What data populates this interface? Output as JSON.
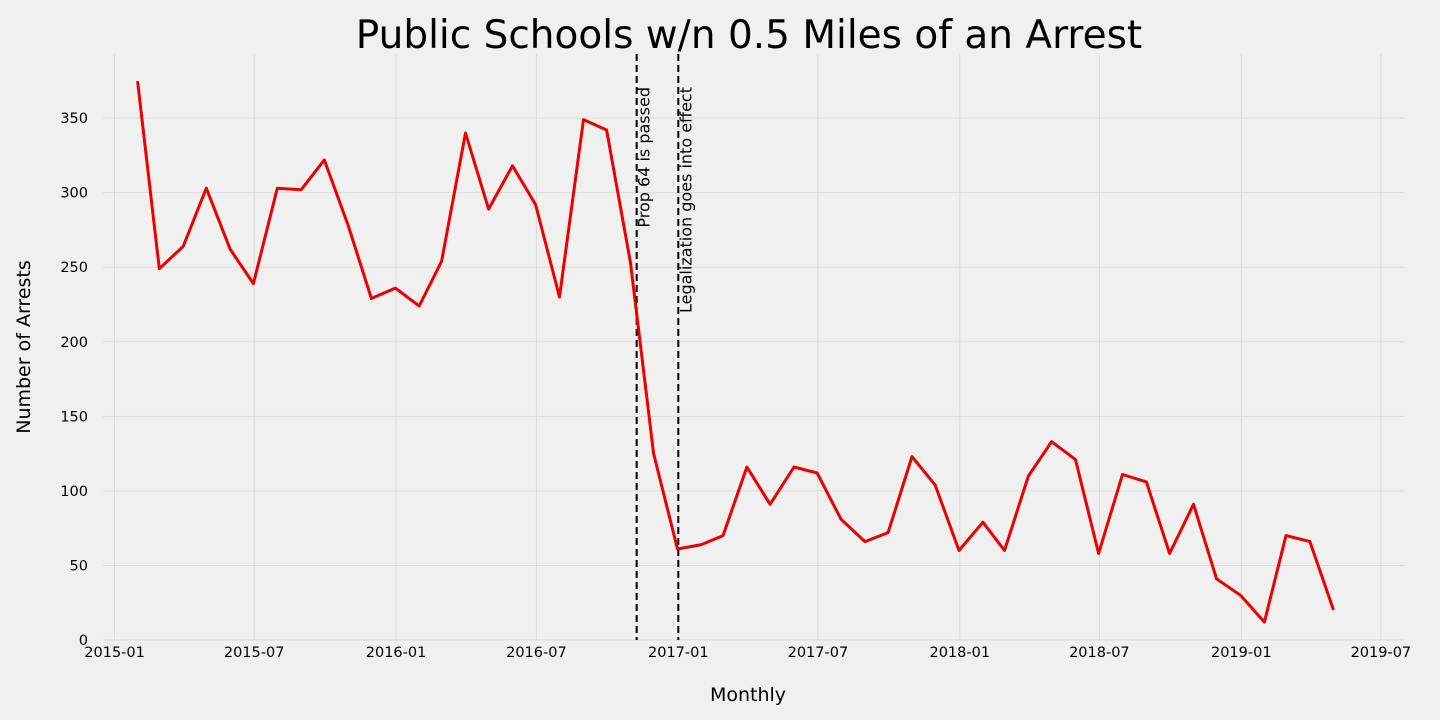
{
  "chart_data": {
    "type": "line",
    "title": "Public Schools w/n 0.5 Miles of an Arrest",
    "xlabel": "Monthly",
    "ylabel": "Number of Arrests",
    "xlim": [
      "2014-12-17",
      "2019-07-31"
    ],
    "ylim": [
      0,
      393
    ],
    "grid": true,
    "x_ticks": [
      "2015-01",
      "2015-07",
      "2016-01",
      "2016-07",
      "2017-01",
      "2017-07",
      "2018-01",
      "2018-07",
      "2019-01",
      "2019-07"
    ],
    "y_ticks": [
      0,
      50,
      100,
      150,
      200,
      250,
      300,
      350
    ],
    "series": [
      {
        "color": "#ee0000",
        "x": [
          "2015-01-31",
          "2015-02-28",
          "2015-03-31",
          "2015-04-30",
          "2015-05-31",
          "2015-06-30",
          "2015-07-31",
          "2015-08-31",
          "2015-09-30",
          "2015-10-31",
          "2015-11-30",
          "2015-12-31",
          "2016-01-31",
          "2016-02-29",
          "2016-03-31",
          "2016-04-30",
          "2016-05-31",
          "2016-06-30",
          "2016-07-31",
          "2016-08-31",
          "2016-09-30",
          "2016-10-31",
          "2016-11-30",
          "2016-12-31",
          "2017-01-31",
          "2017-02-28",
          "2017-03-31",
          "2017-04-30",
          "2017-05-31",
          "2017-06-30",
          "2017-07-31",
          "2017-08-31",
          "2017-09-30",
          "2017-10-31",
          "2017-11-30",
          "2017-12-31",
          "2018-01-31",
          "2018-02-28",
          "2018-03-31",
          "2018-04-30",
          "2018-05-31",
          "2018-06-30",
          "2018-07-31",
          "2018-08-31",
          "2018-09-30",
          "2018-10-31",
          "2018-11-30",
          "2018-12-31",
          "2019-01-31",
          "2019-02-28",
          "2019-03-31",
          "2019-04-30"
        ],
        "y": [
          374,
          249,
          264,
          303,
          262,
          239,
          303,
          302,
          322,
          278,
          229,
          236,
          224,
          254,
          340,
          289,
          318,
          292,
          230,
          349,
          342,
          253,
          125,
          61,
          64,
          70,
          116,
          91,
          116,
          112,
          81,
          66,
          72,
          123,
          104,
          60,
          79,
          60,
          110,
          133,
          121,
          58,
          111,
          106,
          58,
          91,
          41,
          30,
          12,
          70,
          66,
          21
        ]
      }
    ],
    "annotations": [
      {
        "x": "2016-11-08",
        "label": "Prop 64 is passed"
      },
      {
        "x": "2017-01-01",
        "label": "Legalization goes into effect"
      }
    ]
  }
}
